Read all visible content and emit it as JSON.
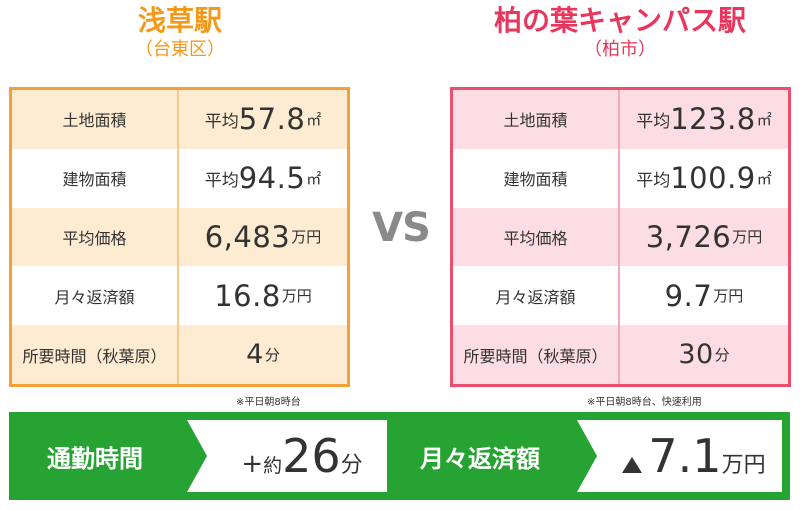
{
  "left": {
    "station": "浅草駅",
    "ward": "（台東区）",
    "rows": [
      {
        "label": "土地面積",
        "prefix": "平均",
        "value": "57.8",
        "unit": "㎡"
      },
      {
        "label": "建物面積",
        "prefix": "平均",
        "value": "94.5",
        "unit": "㎡"
      },
      {
        "label": "平均価格",
        "prefix": "",
        "value": "6,483",
        "unit": "万円"
      },
      {
        "label": "月々返済額",
        "prefix": "",
        "value": "16.8",
        "unit": "万円"
      },
      {
        "label": "所要時間（秋葉原）",
        "prefix": "",
        "value": "4",
        "unit": "分"
      }
    ],
    "note": "※平日朝8時台"
  },
  "right": {
    "station": "柏の葉キャンパス駅",
    "ward": "（柏市）",
    "rows": [
      {
        "label": "土地面積",
        "prefix": "平均",
        "value": "123.8",
        "unit": "㎡"
      },
      {
        "label": "建物面積",
        "prefix": "平均",
        "value": "100.9",
        "unit": "㎡"
      },
      {
        "label": "平均価格",
        "prefix": "",
        "value": "3,726",
        "unit": "万円"
      },
      {
        "label": "月々返済額",
        "prefix": "",
        "value": "9.7",
        "unit": "万円"
      },
      {
        "label": "所要時間（秋葉原）",
        "prefix": "",
        "value": "30",
        "unit": "分"
      }
    ],
    "note": "※平日朝8時台、快速利用"
  },
  "vs": "VS",
  "banner": {
    "commute_label": "通勤時間",
    "commute_prefix": "+",
    "commute_small": "約",
    "commute_value": "26",
    "commute_unit": "分",
    "monthly_label": "月々返済額",
    "monthly_value": "7.1",
    "monthly_unit": "万円"
  },
  "colors": {
    "left_accent": "#f39a1a",
    "right_accent": "#e8365d",
    "banner_green": "#26a333"
  }
}
